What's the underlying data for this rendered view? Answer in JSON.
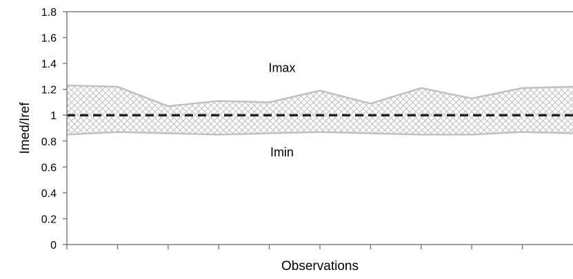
{
  "chart_data": {
    "type": "area",
    "title": "",
    "xlabel": "Observations",
    "ylabel": "Imed/Iref",
    "ylim": [
      0,
      1.8
    ],
    "yticks": [
      "0",
      "0.2",
      "0.4",
      "0.6",
      "0.8",
      "1",
      "1.2",
      "1.4",
      "1.6",
      "1.8"
    ],
    "x": [
      1,
      2,
      3,
      4,
      5,
      6,
      7,
      8,
      9,
      10,
      11
    ],
    "series": [
      {
        "name": "Imax",
        "values": [
          1.23,
          1.22,
          1.07,
          1.11,
          1.1,
          1.19,
          1.09,
          1.21,
          1.13,
          1.21,
          1.22
        ]
      },
      {
        "name": "Imin",
        "values": [
          0.85,
          0.87,
          0.86,
          0.85,
          0.86,
          0.87,
          0.86,
          0.85,
          0.85,
          0.87,
          0.86
        ]
      }
    ],
    "reference_line": {
      "value": 1,
      "style": "dashed"
    },
    "grid": false,
    "legend": "none",
    "colors": {
      "band_line": "#c0c0c0",
      "hatch": "#bdbdbd",
      "reference": "#222222",
      "axis": "#808080"
    }
  }
}
